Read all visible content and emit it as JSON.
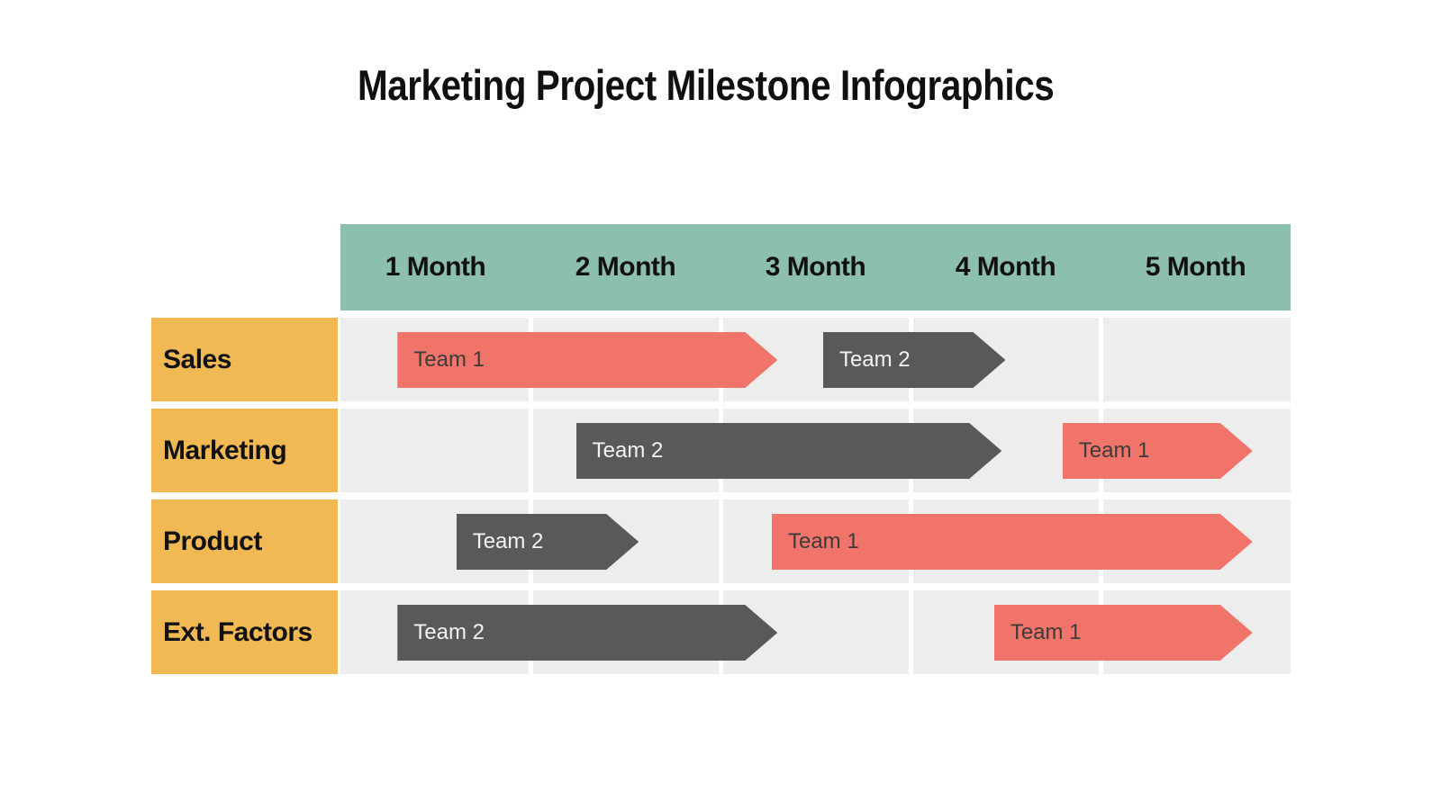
{
  "title": "Marketing Project Milestone Infographics",
  "colors": {
    "background": "#ffffff",
    "header_bg": "#8cbfad",
    "label_bg": "#f0b953",
    "cell_bg": "#ededed",
    "gridline": "#ffffff",
    "heading_text": "#111111",
    "bar_coral": "#f0746a",
    "bar_dark": "#595959",
    "bar_text_on_coral": "#3b3b3b",
    "bar_text_on_dark": "#f2f2f2"
  },
  "chart_data": {
    "type": "bar",
    "subtype": "gantt",
    "title": "Marketing Project Milestone Infographics",
    "columns": [
      "1 Month",
      "2 Month",
      "3 Month",
      "4 Month",
      "5 Month"
    ],
    "x_unit": "months",
    "x_range": [
      0,
      5
    ],
    "grid": "on",
    "rows": [
      {
        "category": "Sales",
        "bars": [
          {
            "name": "Team 1",
            "color": "#f0746a",
            "text_color": "#3b3b3b",
            "start_month": 0.3,
            "end_month": 2.3
          },
          {
            "name": "Team 2",
            "color": "#595959",
            "text_color": "#f2f2f2",
            "start_month": 2.54,
            "end_month": 3.5
          }
        ]
      },
      {
        "category": "Marketing",
        "bars": [
          {
            "name": "Team 2",
            "color": "#595959",
            "text_color": "#f2f2f2",
            "start_month": 1.24,
            "end_month": 3.48
          },
          {
            "name": "Team 1",
            "color": "#f0746a",
            "text_color": "#3b3b3b",
            "start_month": 3.8,
            "end_month": 4.8
          }
        ]
      },
      {
        "category": "Product",
        "bars": [
          {
            "name": "Team 2",
            "color": "#595959",
            "text_color": "#f2f2f2",
            "start_month": 0.61,
            "end_month": 1.57
          },
          {
            "name": "Team 1",
            "color": "#f0746a",
            "text_color": "#3b3b3b",
            "start_month": 2.27,
            "end_month": 4.8
          }
        ]
      },
      {
        "category": "Ext. Factors",
        "bars": [
          {
            "name": "Team 2",
            "color": "#595959",
            "text_color": "#f2f2f2",
            "start_month": 0.3,
            "end_month": 2.3
          },
          {
            "name": "Team 1",
            "color": "#f0746a",
            "text_color": "#3b3b3b",
            "start_month": 3.44,
            "end_month": 4.8
          }
        ]
      }
    ]
  }
}
